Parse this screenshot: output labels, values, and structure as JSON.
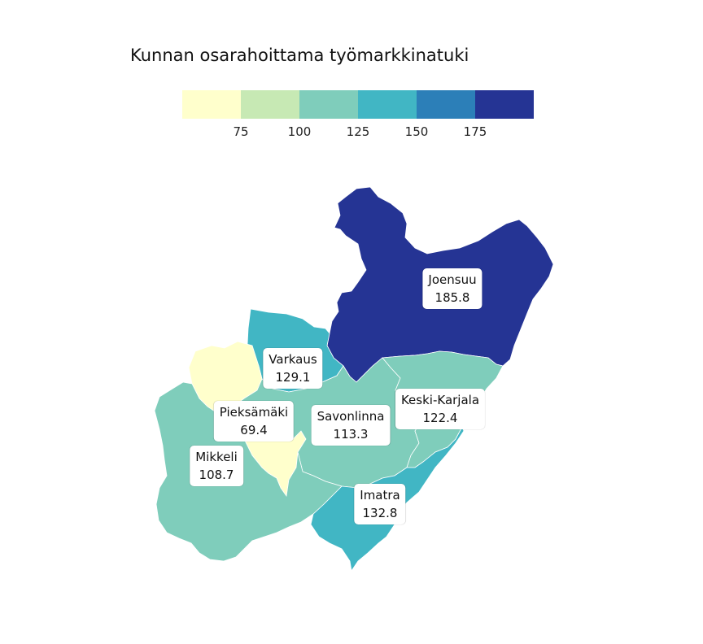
{
  "title": "Kunnan osarahoittama työmarkkinatuki",
  "legend": {
    "colors": [
      "#ffffcc",
      "#c7e9b4",
      "#7fcdbb",
      "#41b6c4",
      "#2c7fb8",
      "#253494"
    ],
    "ticks": [
      "75",
      "100",
      "125",
      "150",
      "175"
    ]
  },
  "regions": [
    {
      "name": "Joensuu",
      "value": "185.8",
      "color": "#253494"
    },
    {
      "name": "Varkaus",
      "value": "129.1",
      "color": "#41b6c4"
    },
    {
      "name": "Keski-Karjala",
      "value": "122.4",
      "color": "#7fcdbb"
    },
    {
      "name": "Pieksämäki",
      "value": "69.4",
      "color": "#ffffcc"
    },
    {
      "name": "Savonlinna",
      "value": "113.3",
      "color": "#7fcdbb"
    },
    {
      "name": "Mikkeli",
      "value": "108.7",
      "color": "#7fcdbb"
    },
    {
      "name": "Imatra",
      "value": "132.8",
      "color": "#41b6c4"
    }
  ]
}
